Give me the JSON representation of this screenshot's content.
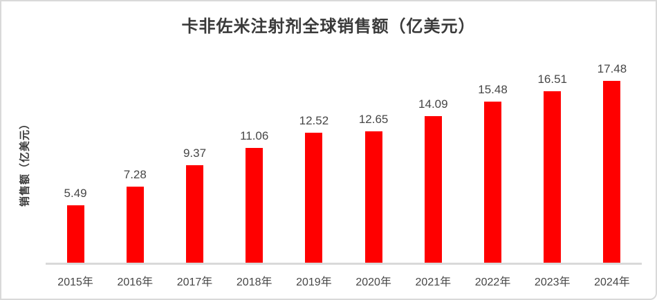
{
  "chart_data": {
    "type": "bar",
    "title": "卡非佐米注射剂全球销售额（亿美元）",
    "ylabel": "销售额（亿美元）",
    "xlabel": "",
    "categories": [
      "2015年",
      "2016年",
      "2017年",
      "2018年",
      "2019年",
      "2020年",
      "2021年",
      "2022年",
      "2023年",
      "2024年"
    ],
    "values": [
      5.49,
      7.28,
      9.37,
      11.06,
      12.52,
      12.65,
      14.09,
      15.48,
      16.51,
      17.48
    ],
    "value_labels_shown": true,
    "value_label_decimals": 2,
    "ylim": [
      0,
      20
    ],
    "grid": false,
    "legend": false,
    "colors": {
      "bar": "#FF0000",
      "axis_line": "#D9D9D9",
      "card_border": "#D9D9D9",
      "title_text": "#3A3A3A",
      "label_text": "#464646",
      "background": "#FFFFFF"
    }
  }
}
